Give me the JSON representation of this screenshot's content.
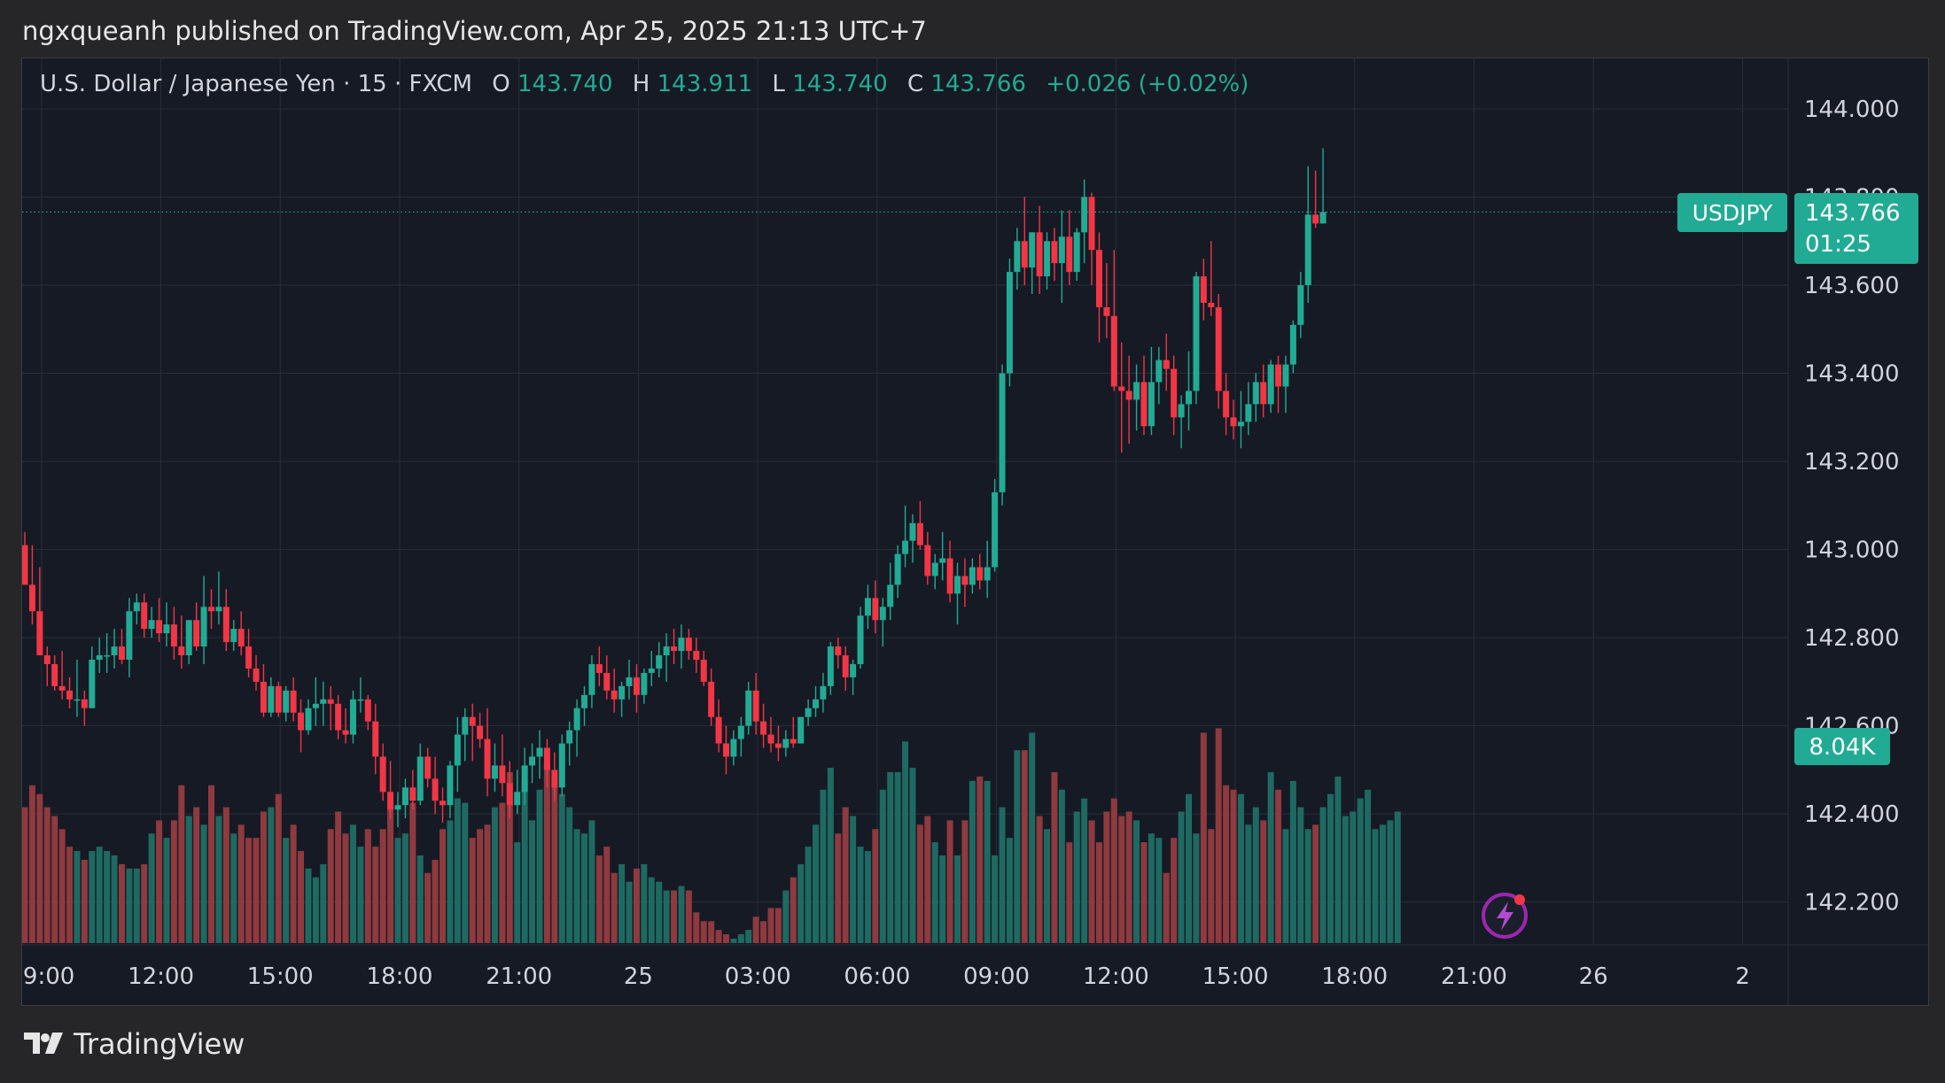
{
  "header": {
    "publisher_line": "ngxqueanh published on TradingView.com, Apr 25, 2025 21:13 UTC+7"
  },
  "legend": {
    "symbol": "U.S. Dollar / Japanese Yen · 15 · FXCM",
    "o_label": "O",
    "o_value": "143.740",
    "h_label": "H",
    "h_value": "143.911",
    "l_label": "L",
    "l_value": "143.740",
    "c_label": "C",
    "c_value": "143.766",
    "change": "+0.026 (+0.02%)"
  },
  "price_tag": {
    "ticker": "USDJPY",
    "price": "143.766",
    "countdown": "01:25"
  },
  "volume_tag": "8.04K",
  "footer": {
    "brand": "TradingView"
  },
  "colors": {
    "up": "#22ab94",
    "down": "#f23645",
    "volume_up": "#1e6a62",
    "volume_down": "#8e3a3f",
    "background": "#161a25",
    "grid": "#2a2e39",
    "axis_text": "#d1d4dc",
    "accent_purple": "#9c27b0"
  },
  "chart_data": {
    "type": "candlestick",
    "symbol": "USDJPY",
    "interval": "15",
    "grid": true,
    "y_axis": {
      "range": [
        142.1,
        144.05
      ],
      "ticks": [
        "144.000",
        "143.800",
        "143.600",
        "143.400",
        "143.200",
        "143.000",
        "142.800",
        "142.600",
        "142.400",
        "142.200"
      ]
    },
    "x_axis": {
      "labels": [
        {
          "text": "09:00",
          "index": 2
        },
        {
          "text": "12:00",
          "index": 18
        },
        {
          "text": "15:00",
          "index": 34
        },
        {
          "text": "18:00",
          "index": 50
        },
        {
          "text": "21:00",
          "index": 66
        },
        {
          "text": "25",
          "index": 82
        },
        {
          "text": "03:00",
          "index": 98
        },
        {
          "text": "06:00",
          "index": 114
        },
        {
          "text": "09:00",
          "index": 130
        },
        {
          "text": "12:00",
          "index": 146
        },
        {
          "text": "15:00",
          "index": 162
        },
        {
          "text": "18:00",
          "index": 178
        },
        {
          "text": "21:00",
          "index": 194
        },
        {
          "text": "26",
          "index": 210
        },
        {
          "text": "2",
          "index": 230
        }
      ]
    },
    "last_price": 143.766,
    "volume_last": "8.04K",
    "candles": [
      [
        143.01,
        143.04,
        142.93,
        142.92
      ],
      [
        142.92,
        143.01,
        142.83,
        142.86
      ],
      [
        142.86,
        142.96,
        142.76,
        142.76
      ],
      [
        142.76,
        142.78,
        142.69,
        142.74
      ],
      [
        142.74,
        142.76,
        142.68,
        142.69
      ],
      [
        142.69,
        142.77,
        142.66,
        142.68
      ],
      [
        142.68,
        142.71,
        142.64,
        142.66
      ],
      [
        142.66,
        142.75,
        142.62,
        142.66
      ],
      [
        142.66,
        142.68,
        142.6,
        142.64
      ],
      [
        142.64,
        142.78,
        142.64,
        142.75
      ],
      [
        142.75,
        142.8,
        142.72,
        142.76
      ],
      [
        142.76,
        142.81,
        142.72,
        142.76
      ],
      [
        142.76,
        142.82,
        142.73,
        142.78
      ],
      [
        142.78,
        142.82,
        142.74,
        142.75
      ],
      [
        142.75,
        142.89,
        142.71,
        142.86
      ],
      [
        142.86,
        142.9,
        142.83,
        142.88
      ],
      [
        142.88,
        142.9,
        142.8,
        142.82
      ],
      [
        142.82,
        142.87,
        142.8,
        142.84
      ],
      [
        142.84,
        142.89,
        142.79,
        142.81
      ],
      [
        142.81,
        142.88,
        142.78,
        142.83
      ],
      [
        142.83,
        142.87,
        142.75,
        142.78
      ],
      [
        142.78,
        142.85,
        142.73,
        142.76
      ],
      [
        142.76,
        142.84,
        142.74,
        142.84
      ],
      [
        142.84,
        142.88,
        142.77,
        142.78
      ],
      [
        142.78,
        142.94,
        142.74,
        142.87
      ],
      [
        142.87,
        142.91,
        142.82,
        142.86
      ],
      [
        142.86,
        142.95,
        142.83,
        142.87
      ],
      [
        142.87,
        142.91,
        142.77,
        142.79
      ],
      [
        142.79,
        142.84,
        142.77,
        142.82
      ],
      [
        142.82,
        142.86,
        142.76,
        142.78
      ],
      [
        142.78,
        142.82,
        142.71,
        142.73
      ],
      [
        142.73,
        142.76,
        142.68,
        142.7
      ],
      [
        142.7,
        142.74,
        142.62,
        142.63
      ],
      [
        142.63,
        142.71,
        142.62,
        142.69
      ],
      [
        142.69,
        142.7,
        142.62,
        142.63
      ],
      [
        142.63,
        142.69,
        142.61,
        142.68
      ],
      [
        142.68,
        142.71,
        142.61,
        142.63
      ],
      [
        142.63,
        142.66,
        142.54,
        142.59
      ],
      [
        142.59,
        142.66,
        142.58,
        142.64
      ],
      [
        142.64,
        142.71,
        142.6,
        142.65
      ],
      [
        142.65,
        142.7,
        142.6,
        142.66
      ],
      [
        142.66,
        142.69,
        142.59,
        142.65
      ],
      [
        142.65,
        142.67,
        142.57,
        142.59
      ],
      [
        142.59,
        142.64,
        142.56,
        142.58
      ],
      [
        142.58,
        142.68,
        142.56,
        142.66
      ],
      [
        142.66,
        142.71,
        142.63,
        142.66
      ],
      [
        142.66,
        142.67,
        142.59,
        142.61
      ],
      [
        142.61,
        142.65,
        142.49,
        142.53
      ],
      [
        142.53,
        142.56,
        142.43,
        142.45
      ],
      [
        142.45,
        142.52,
        142.39,
        142.41
      ],
      [
        142.41,
        142.45,
        142.37,
        142.42
      ],
      [
        142.42,
        142.48,
        142.39,
        142.46
      ],
      [
        142.46,
        142.5,
        142.41,
        142.43
      ],
      [
        142.43,
        142.56,
        142.42,
        142.53
      ],
      [
        142.53,
        142.55,
        142.46,
        142.48
      ],
      [
        142.48,
        142.53,
        142.4,
        142.43
      ],
      [
        142.43,
        142.46,
        142.38,
        142.42
      ],
      [
        142.42,
        142.52,
        142.39,
        142.51
      ],
      [
        142.51,
        142.62,
        142.45,
        142.58
      ],
      [
        142.58,
        142.64,
        142.52,
        142.62
      ],
      [
        142.62,
        142.65,
        142.52,
        142.6
      ],
      [
        142.6,
        142.63,
        142.55,
        142.57
      ],
      [
        142.57,
        142.64,
        142.44,
        142.48
      ],
      [
        142.48,
        142.56,
        142.45,
        142.51
      ],
      [
        142.51,
        142.58,
        142.44,
        142.47
      ],
      [
        142.47,
        142.52,
        142.39,
        142.42
      ],
      [
        142.42,
        142.5,
        142.4,
        142.45
      ],
      [
        142.45,
        142.55,
        142.42,
        142.51
      ],
      [
        142.51,
        142.56,
        142.47,
        142.53
      ],
      [
        142.53,
        142.59,
        142.48,
        142.55
      ],
      [
        142.55,
        142.57,
        142.46,
        142.5
      ],
      [
        142.5,
        142.54,
        142.43,
        142.46
      ],
      [
        142.46,
        142.58,
        142.44,
        142.56
      ],
      [
        142.56,
        142.61,
        142.51,
        142.59
      ],
      [
        142.59,
        142.66,
        142.53,
        142.64
      ],
      [
        142.64,
        142.69,
        142.6,
        142.67
      ],
      [
        142.67,
        142.76,
        142.64,
        142.74
      ],
      [
        142.74,
        142.78,
        142.69,
        142.72
      ],
      [
        142.72,
        142.76,
        142.66,
        142.68
      ],
      [
        142.68,
        142.73,
        142.63,
        142.66
      ],
      [
        142.66,
        142.7,
        142.62,
        142.69
      ],
      [
        142.69,
        142.75,
        142.66,
        142.71
      ],
      [
        142.71,
        142.74,
        142.63,
        142.67
      ],
      [
        142.67,
        142.73,
        142.65,
        142.72
      ],
      [
        142.72,
        142.77,
        142.69,
        142.73
      ],
      [
        142.73,
        142.79,
        142.71,
        142.76
      ],
      [
        142.76,
        142.81,
        142.7,
        142.78
      ],
      [
        142.78,
        142.82,
        142.74,
        142.77
      ],
      [
        142.77,
        142.83,
        142.73,
        142.8
      ],
      [
        142.8,
        142.82,
        142.75,
        142.77
      ],
      [
        142.77,
        142.8,
        142.72,
        142.75
      ],
      [
        142.75,
        142.77,
        142.69,
        142.7
      ],
      [
        142.7,
        142.73,
        142.6,
        142.62
      ],
      [
        142.62,
        142.66,
        142.54,
        142.56
      ],
      [
        142.56,
        142.6,
        142.49,
        142.53
      ],
      [
        142.53,
        142.59,
        142.51,
        142.57
      ],
      [
        142.57,
        142.62,
        142.53,
        142.6
      ],
      [
        142.6,
        142.7,
        142.58,
        142.68
      ],
      [
        142.68,
        142.72,
        142.58,
        142.61
      ],
      [
        142.61,
        142.65,
        142.55,
        142.58
      ],
      [
        142.58,
        142.62,
        142.54,
        142.56
      ],
      [
        142.56,
        142.6,
        142.52,
        142.55
      ],
      [
        142.55,
        142.59,
        142.53,
        142.57
      ],
      [
        142.57,
        142.62,
        142.55,
        142.56
      ],
      [
        142.56,
        142.62,
        142.56,
        142.62
      ],
      [
        142.62,
        142.66,
        142.6,
        142.64
      ],
      [
        142.64,
        142.69,
        142.62,
        142.66
      ],
      [
        142.66,
        142.72,
        142.63,
        142.69
      ],
      [
        142.69,
        142.79,
        142.67,
        142.78
      ],
      [
        142.78,
        142.8,
        142.73,
        142.76
      ],
      [
        142.76,
        142.78,
        142.68,
        142.71
      ],
      [
        142.71,
        142.75,
        142.67,
        142.74
      ],
      [
        142.74,
        142.87,
        142.73,
        142.85
      ],
      [
        142.85,
        142.92,
        142.82,
        142.89
      ],
      [
        142.89,
        142.93,
        142.81,
        142.84
      ],
      [
        142.84,
        142.89,
        142.78,
        142.87
      ],
      [
        142.87,
        142.97,
        142.84,
        142.92
      ],
      [
        142.92,
        143.01,
        142.89,
        142.99
      ],
      [
        142.99,
        143.1,
        142.96,
        143.02
      ],
      [
        143.02,
        143.08,
        142.97,
        143.06
      ],
      [
        143.06,
        143.11,
        143.0,
        143.01
      ],
      [
        143.01,
        143.04,
        142.92,
        142.94
      ],
      [
        142.94,
        142.99,
        142.91,
        142.97
      ],
      [
        142.97,
        143.04,
        142.93,
        142.98
      ],
      [
        142.98,
        143.02,
        142.88,
        142.9
      ],
      [
        142.9,
        142.97,
        142.83,
        142.94
      ],
      [
        142.94,
        142.98,
        142.87,
        142.92
      ],
      [
        142.92,
        142.98,
        142.9,
        142.96
      ],
      [
        142.96,
        142.99,
        142.91,
        142.93
      ],
      [
        142.93,
        143.02,
        142.89,
        142.96
      ],
      [
        142.96,
        143.16,
        142.95,
        143.13
      ],
      [
        143.13,
        143.42,
        143.1,
        143.4
      ],
      [
        143.4,
        143.66,
        143.37,
        143.63
      ],
      [
        143.63,
        143.73,
        143.59,
        143.7
      ],
      [
        143.7,
        143.8,
        143.6,
        143.64
      ],
      [
        143.64,
        143.72,
        143.58,
        143.72
      ],
      [
        143.72,
        143.78,
        143.58,
        143.62
      ],
      [
        143.62,
        143.72,
        143.59,
        143.7
      ],
      [
        143.7,
        143.73,
        143.61,
        143.65
      ],
      [
        143.65,
        143.77,
        143.56,
        143.71
      ],
      [
        143.71,
        143.77,
        143.6,
        143.63
      ],
      [
        143.63,
        143.73,
        143.61,
        143.72
      ],
      [
        143.72,
        143.84,
        143.65,
        143.8
      ],
      [
        143.8,
        143.81,
        143.6,
        143.68
      ],
      [
        143.68,
        143.72,
        143.47,
        143.55
      ],
      [
        143.55,
        143.65,
        143.48,
        143.53
      ],
      [
        143.53,
        143.68,
        143.36,
        143.37
      ],
      [
        143.37,
        143.47,
        143.22,
        143.36
      ],
      [
        143.36,
        143.44,
        143.24,
        143.34
      ],
      [
        143.34,
        143.42,
        143.27,
        143.38
      ],
      [
        143.38,
        143.44,
        143.26,
        143.28
      ],
      [
        143.28,
        143.46,
        143.26,
        143.38
      ],
      [
        143.38,
        143.46,
        143.33,
        143.43
      ],
      [
        143.43,
        143.49,
        143.36,
        143.41
      ],
      [
        143.41,
        143.44,
        143.26,
        143.3
      ],
      [
        143.3,
        143.35,
        143.23,
        143.33
      ],
      [
        143.33,
        143.45,
        143.27,
        143.36
      ],
      [
        143.36,
        143.63,
        143.33,
        143.62
      ],
      [
        143.62,
        143.66,
        143.52,
        143.56
      ],
      [
        143.56,
        143.7,
        143.53,
        143.55
      ],
      [
        143.55,
        143.58,
        143.32,
        143.36
      ],
      [
        143.36,
        143.4,
        143.26,
        143.3
      ],
      [
        143.3,
        143.34,
        143.25,
        143.28
      ],
      [
        143.28,
        143.36,
        143.23,
        143.29
      ],
      [
        143.29,
        143.38,
        143.26,
        143.33
      ],
      [
        143.33,
        143.4,
        143.29,
        143.38
      ],
      [
        143.38,
        143.42,
        143.3,
        143.33
      ],
      [
        143.33,
        143.43,
        143.31,
        143.42
      ],
      [
        143.42,
        143.44,
        143.31,
        143.37
      ],
      [
        143.37,
        143.44,
        143.31,
        143.42
      ],
      [
        143.42,
        143.52,
        143.4,
        143.51
      ],
      [
        143.51,
        143.63,
        143.48,
        143.6
      ],
      [
        143.6,
        143.87,
        143.56,
        143.76
      ],
      [
        143.76,
        143.86,
        143.73,
        143.74
      ],
      [
        143.74,
        143.911,
        143.74,
        143.766
      ]
    ],
    "volumes": [
      31,
      36,
      34,
      31,
      29,
      26,
      22,
      21,
      19,
      21,
      22,
      21,
      20,
      18,
      17,
      17,
      18,
      25,
      28,
      24,
      28,
      36,
      29,
      31,
      27,
      36,
      29,
      31,
      25,
      27,
      24,
      24,
      30,
      31,
      34,
      24,
      27,
      21,
      17,
      15,
      18,
      26,
      30,
      25,
      27,
      22,
      26,
      22,
      26,
      31,
      24,
      25,
      32,
      20,
      16,
      19,
      26,
      28,
      33,
      32,
      24,
      26,
      27,
      31,
      32,
      39,
      23,
      37,
      28,
      35,
      41,
      38,
      34,
      31,
      26,
      25,
      28,
      20,
      22,
      16,
      18,
      14,
      17,
      18,
      15,
      14,
      12,
      12,
      13,
      12,
      7,
      5,
      5,
      3,
      2,
      1,
      2,
      3,
      6,
      5,
      8,
      8,
      12,
      15,
      18,
      22,
      27,
      35,
      40,
      25,
      31,
      29,
      22,
      21,
      26,
      35,
      39,
      39,
      46,
      40,
      27,
      29,
      23,
      20,
      28,
      20,
      28,
      37,
      38,
      37,
      20,
      31,
      24,
      44,
      44,
      48,
      29,
      26,
      39,
      35,
      23,
      30,
      33,
      28,
      23,
      30,
      33,
      29,
      30,
      28,
      23,
      25,
      24,
      16,
      24,
      30,
      34,
      25,
      48,
      26,
      49,
      36,
      35,
      34,
      27,
      31,
      28,
      39,
      35,
      26,
      37,
      31,
      26,
      27,
      31,
      34,
      38,
      29,
      30,
      33,
      35,
      26,
      27,
      28,
      30
    ]
  }
}
